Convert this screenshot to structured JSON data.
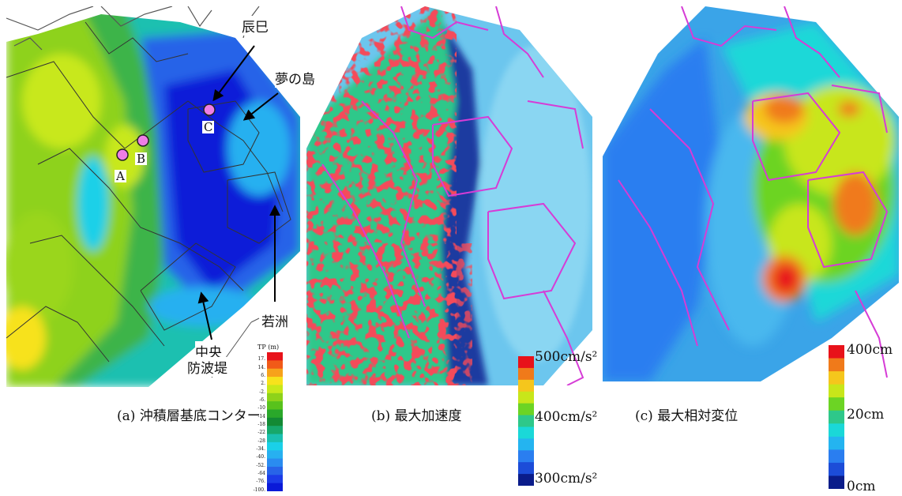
{
  "panels": {
    "a": {
      "caption": "(a) 沖積層基底コンター",
      "legend_title": "TP (m)",
      "legend_ticks": [
        "17.",
        "14.",
        "6.",
        "2.",
        "-2.",
        "-6.",
        "-10",
        "-14",
        "-18",
        "-22",
        "-28",
        "-34.",
        "-40.",
        "-52.",
        "-64",
        "-76.",
        "-100."
      ],
      "legend_colors": [
        "#e8121a",
        "#f15a18",
        "#f7a21b",
        "#f7e21c",
        "#c8e81a",
        "#8ed21a",
        "#58c21c",
        "#2aa82a",
        "#138a34",
        "#17a86b",
        "#1ac0b0",
        "#1ad0e8",
        "#27b0f0",
        "#2a8cf0",
        "#2864e8",
        "#1c3ce8",
        "#0a1ad8"
      ],
      "callouts": {
        "tatsumi": "辰巳",
        "yumenoshima": "夢の島",
        "wakasu": "若洲",
        "chuo_line1": "中央",
        "chuo_line2": "防波堤"
      },
      "points": {
        "a": "A",
        "b": "B",
        "c": "C"
      }
    },
    "b": {
      "caption": "(b) 最大加速度",
      "legend_top": "500cm/s²",
      "legend_mid": "400cm/s²",
      "legend_bottom": "300cm/s²",
      "legend_colors": [
        "#e8121a",
        "#f07a1a",
        "#f5c61c",
        "#c8e61a",
        "#6cd424",
        "#2ec88a",
        "#1ad8d8",
        "#24b4f0",
        "#2a7ef0",
        "#1c4cd8",
        "#0a1c8a"
      ]
    },
    "c": {
      "caption": "(c) 最大相対変位",
      "legend_top": "400cm",
      "legend_mid": "20cm",
      "legend_bottom": "0cm",
      "legend_colors": [
        "#e8121a",
        "#f07a1a",
        "#f5c61c",
        "#c8e61a",
        "#6cd424",
        "#2ec88a",
        "#1ad8d8",
        "#24b4f0",
        "#2a7ef0",
        "#1c4cd8",
        "#0a1c8a"
      ]
    }
  }
}
